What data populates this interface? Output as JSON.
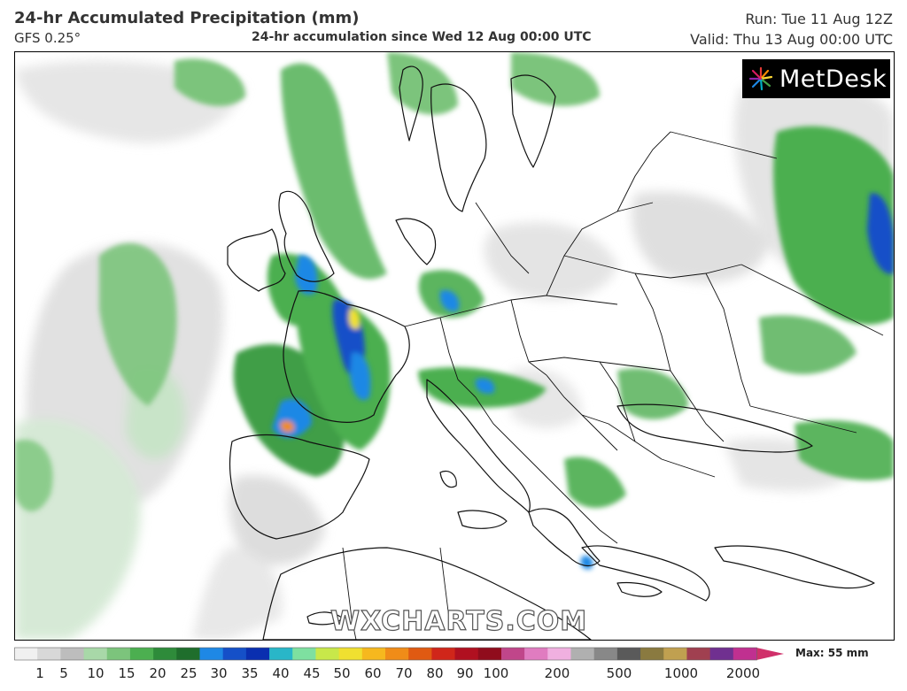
{
  "header": {
    "title": "24-hr Accumulated Precipitation (mm)",
    "model": "GFS 0.25°",
    "subtitle": "24-hr accumulation since Wed 12 Aug 00:00 UTC",
    "run": "Run: Tue 11 Aug 12Z",
    "valid": "Valid: Thu 13 Aug 00:00 UTC"
  },
  "brand": {
    "logo_text": "MetDesk",
    "icon": "metdesk-starburst-icon"
  },
  "watermark": "WXCHARTS.COM",
  "legend": {
    "max_label": "Max: 55 mm",
    "ticks": [
      "1",
      "5",
      "10",
      "15",
      "20",
      "25",
      "30",
      "35",
      "40",
      "45",
      "50",
      "60",
      "70",
      "80",
      "90",
      "100",
      "200",
      "500",
      "1000",
      "2000"
    ],
    "colors": [
      "#f0f0f0",
      "#d8d8d8",
      "#bdbdbd",
      "#a8d8a8",
      "#7cc47c",
      "#4caf50",
      "#2e8b3a",
      "#1f6e2c",
      "#1e88e5",
      "#1550c8",
      "#0a2fb0",
      "#29b6c8",
      "#7ee0a0",
      "#c8e84a",
      "#f0e030",
      "#f6b81e",
      "#f08c18",
      "#e05a12",
      "#d0261a",
      "#b01020",
      "#900c1c",
      "#c0468a",
      "#e07cc0",
      "#f0b0e0",
      "#b0b0b0",
      "#888888",
      "#5a5a5a",
      "#8a7a40",
      "#c0a050",
      "#a04050",
      "#703090",
      "#c03090"
    ]
  }
}
